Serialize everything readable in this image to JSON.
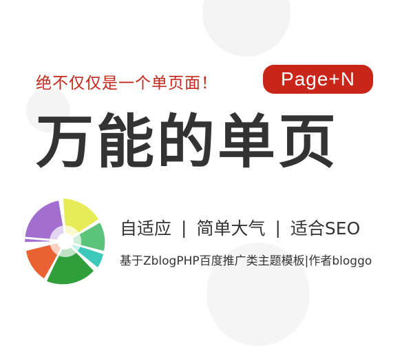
{
  "tagline": "绝不仅仅是一个单页面！",
  "badge": "Page+N",
  "title": "万能的单页",
  "features": [
    "自适应",
    "简单大气",
    "适合SEO"
  ],
  "separator": "|",
  "subline": "基于ZblogPHP百度推广类主题模板|作者bloggo",
  "colors": {
    "accent": "#c8261b",
    "text": "#333333",
    "purple": "#a26ed0",
    "yellow": "#e7ec56",
    "green_light": "#5cc47a",
    "teal": "#3cc9b9",
    "green_dark": "#2f9e3b",
    "orange": "#ea6233"
  }
}
